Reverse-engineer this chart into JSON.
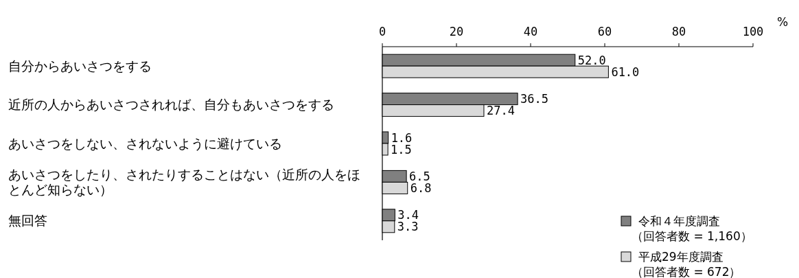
{
  "chart_data": {
    "type": "bar",
    "orientation": "horizontal",
    "xlabel": "%",
    "categories": [
      "自分からあいさつをする",
      "近所の人からあいさつされれば、自分もあいさつをする",
      "あいさつをしない、されないように避けている",
      "あいさつをしたり、されたりすることはない（近所の人をほとんど知らない）",
      "無回答"
    ],
    "series": [
      {
        "name": "令和４年度調査（回答者数 = 1,160）",
        "color": "#808080",
        "values": [
          52.0,
          36.5,
          1.6,
          6.5,
          3.4
        ],
        "value_labels": [
          "52.0",
          "36.5",
          "1.6",
          "6.5",
          "3.4"
        ]
      },
      {
        "name": "平成29年度調査（回答者数 = 672）",
        "color": "#d9d9d9",
        "values": [
          61.0,
          27.4,
          1.5,
          6.8,
          3.3
        ],
        "value_labels": [
          "61.0",
          "27.4",
          "1.5",
          "6.8",
          "3.3"
        ]
      }
    ],
    "xlim": [
      0,
      100
    ],
    "xticks": [
      0,
      20,
      40,
      60,
      80,
      100
    ],
    "legend": "bottom right",
    "grid": false
  }
}
